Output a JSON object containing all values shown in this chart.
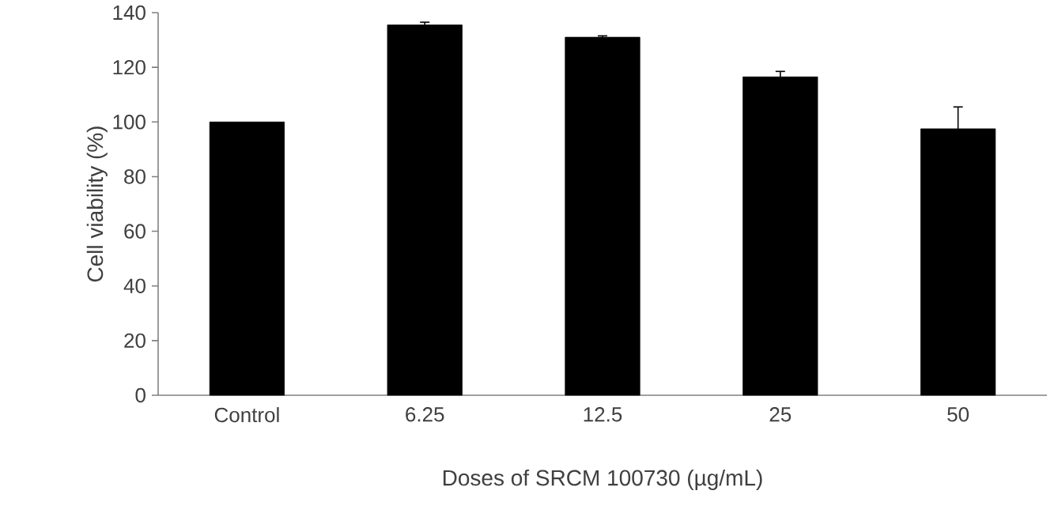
{
  "chart_data": {
    "type": "bar",
    "xlabel": "Doses of SRCM 100730 (µg/mL)",
    "ylabel": "Cell viability (%)",
    "categories": [
      "Control",
      "6.25",
      "12.5",
      "25",
      "50"
    ],
    "values": [
      100,
      135.5,
      131,
      116.5,
      97.5
    ],
    "errors": [
      null,
      1,
      0.5,
      2,
      8
    ],
    "color": "#000000",
    "ylim": [
      0,
      140
    ],
    "yticks": [
      0,
      20,
      40,
      60,
      80,
      100,
      120,
      140
    ],
    "grid": false
  }
}
